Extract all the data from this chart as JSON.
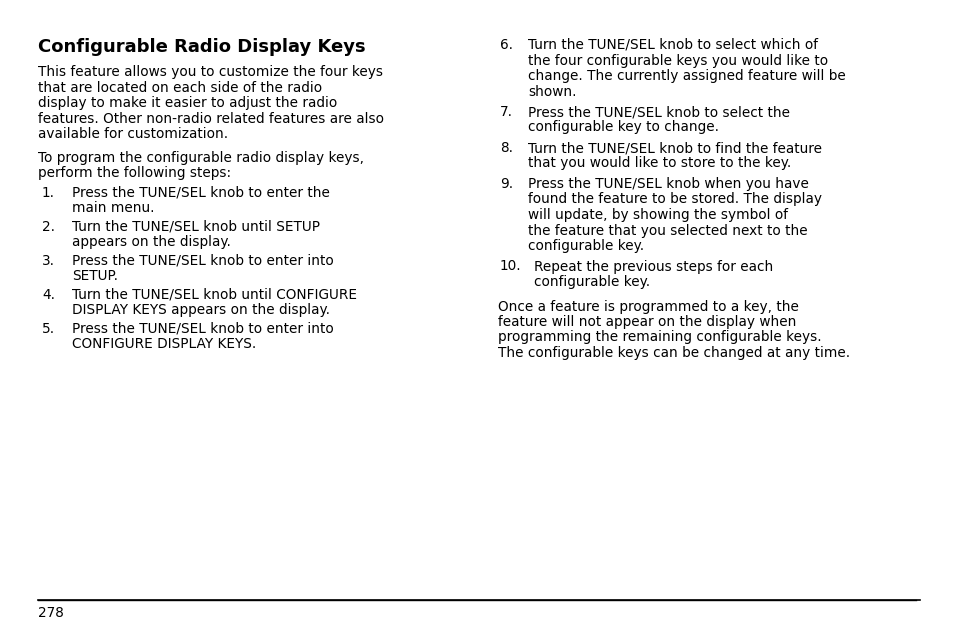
{
  "bg_color": "#ffffff",
  "title": "Configurable Radio Display Keys",
  "title_fontsize": 13.0,
  "body_fontsize": 9.8,
  "page_number": "278",
  "text_color": "#000000",
  "paragraph1_lines": [
    "This feature allows you to customize the four keys",
    "that are located on each side of the radio",
    "display to make it easier to adjust the radio",
    "features. Other non-radio related features are also",
    "available for customization."
  ],
  "paragraph2_lines": [
    "To program the configurable radio display keys,",
    "perform the following steps:"
  ],
  "steps_col1": [
    {
      "num": "1.",
      "lines": [
        "Press the TUNE/SEL knob to enter the",
        "main menu."
      ]
    },
    {
      "num": "2.",
      "lines": [
        "Turn the TUNE/SEL knob until SETUP",
        "appears on the display."
      ]
    },
    {
      "num": "3.",
      "lines": [
        "Press the TUNE/SEL knob to enter into",
        "SETUP."
      ]
    },
    {
      "num": "4.",
      "lines": [
        "Turn the TUNE/SEL knob until CONFIGURE",
        "DISPLAY KEYS appears on the display."
      ]
    },
    {
      "num": "5.",
      "lines": [
        "Press the TUNE/SEL knob to enter into",
        "CONFIGURE DISPLAY KEYS."
      ]
    }
  ],
  "steps_col2": [
    {
      "num": "6.",
      "lines": [
        "Turn the TUNE/SEL knob to select which of",
        "the four configurable keys you would like to",
        "change. The currently assigned feature will be",
        "shown."
      ]
    },
    {
      "num": "7.",
      "lines": [
        "Press the TUNE/SEL knob to select the",
        "configurable key to change."
      ]
    },
    {
      "num": "8.",
      "lines": [
        "Turn the TUNE/SEL knob to find the feature",
        "that you would like to store to the key."
      ]
    },
    {
      "num": "9.",
      "lines": [
        "Press the TUNE/SEL knob when you have",
        "found the feature to be stored. The display",
        "will update, by showing the symbol of",
        "the feature that you selected next to the",
        "configurable key."
      ]
    },
    {
      "num": "10.",
      "lines": [
        "Repeat the previous steps for each",
        "configurable key."
      ]
    }
  ],
  "closing_lines": [
    "Once a feature is programmed to a key, the",
    "feature will not appear on the display when",
    "programming the remaining configurable keys.",
    "The configurable keys can be changed at any time."
  ]
}
